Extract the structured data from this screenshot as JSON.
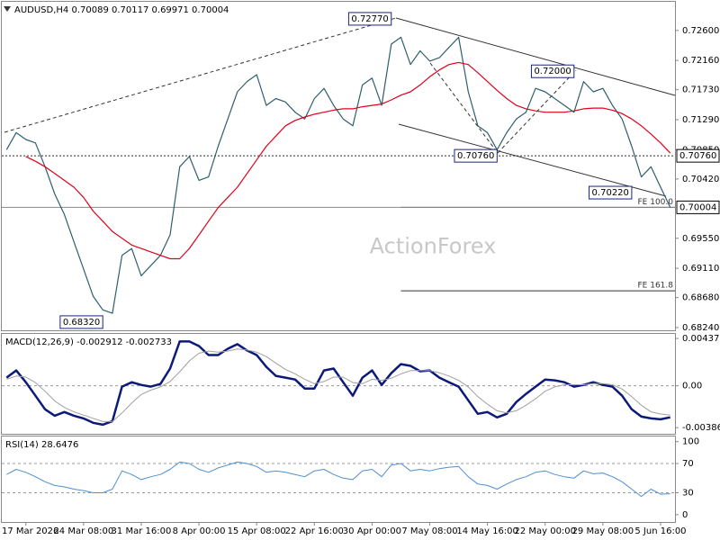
{
  "chart_data": [
    {
      "type": "line",
      "title": "AUDUSD,H4  0.70089 0.70117 0.69971 0.70004",
      "watermark": "ActionForex",
      "ylim": [
        0.682,
        0.7302
      ],
      "yticks": [
        {
          "value": 0.726,
          "label": "0.72600"
        },
        {
          "value": 0.7216,
          "label": "0.72160"
        },
        {
          "value": 0.7173,
          "label": "0.71730"
        },
        {
          "value": 0.7129,
          "label": "0.71290"
        },
        {
          "value": 0.7085,
          "label": "0.70850"
        },
        {
          "value": 0.7042,
          "label": "0.70420"
        },
        {
          "value": 0.6955,
          "label": "0.69550"
        },
        {
          "value": 0.6911,
          "label": "0.69110"
        },
        {
          "value": 0.6868,
          "label": "0.68680"
        },
        {
          "value": 0.6824,
          "label": "0.68240"
        }
      ],
      "series": [
        {
          "color": "#2f5f6e",
          "values": [
            0.7085,
            0.711,
            0.71,
            0.7095,
            0.706,
            0.702,
            0.699,
            0.695,
            0.691,
            0.687,
            0.685,
            0.6845,
            0.693,
            0.694,
            0.69,
            0.6915,
            0.693,
            0.696,
            0.706,
            0.7075,
            0.704,
            0.7045,
            0.709,
            0.713,
            0.717,
            0.7185,
            0.7195,
            0.715,
            0.716,
            0.7155,
            0.714,
            0.713,
            0.716,
            0.7175,
            0.715,
            0.713,
            0.712,
            0.718,
            0.719,
            0.715,
            0.724,
            0.725,
            0.721,
            0.723,
            0.7215,
            0.722,
            0.7235,
            0.725,
            0.717,
            0.712,
            0.711,
            0.7085,
            0.711,
            0.713,
            0.714,
            0.7175,
            0.717,
            0.716,
            0.715,
            0.714,
            0.7185,
            0.717,
            0.7175,
            0.715,
            0.713,
            0.709,
            0.7045,
            0.706,
            0.703,
            0.70004
          ]
        },
        {
          "color": "#e0001b",
          "values": [
            null,
            null,
            0.7075,
            0.7068,
            0.706,
            0.705,
            0.704,
            0.703,
            0.7015,
            0.6995,
            0.698,
            0.6965,
            0.6955,
            0.6945,
            0.694,
            0.6935,
            0.693,
            0.6925,
            0.6925,
            0.694,
            0.696,
            0.698,
            0.7,
            0.7015,
            0.703,
            0.705,
            0.707,
            0.709,
            0.7105,
            0.712,
            0.7128,
            0.7133,
            0.7137,
            0.714,
            0.7143,
            0.7145,
            0.7145,
            0.7148,
            0.715,
            0.7152,
            0.7158,
            0.7165,
            0.717,
            0.718,
            0.7192,
            0.7202,
            0.721,
            0.7213,
            0.721,
            0.7198,
            0.7185,
            0.7172,
            0.716,
            0.715,
            0.7145,
            0.7142,
            0.714,
            0.714,
            0.714,
            0.7142,
            0.7145,
            0.7146,
            0.7146,
            0.7143,
            0.7138,
            0.713,
            0.712,
            0.7108,
            0.7095,
            0.708
          ]
        }
      ],
      "hlines": [
        {
          "value": 0.7076,
          "label": "0.70760",
          "style": "dotted"
        },
        {
          "value": 0.70004,
          "label": "0.70004",
          "style": "solid"
        }
      ],
      "levels": [
        {
          "value": 0.70004,
          "label": "FE 100.0",
          "from": 41
        },
        {
          "value": 0.6878,
          "label": "FE 161.8",
          "from": 41
        }
      ],
      "annotations": [
        {
          "label": "0.72770",
          "value": 0.7277,
          "x": 40
        },
        {
          "label": "0.70760",
          "value": 0.7076,
          "x": 51
        },
        {
          "label": "0.72000",
          "value": 0.72,
          "x": 59
        },
        {
          "label": "0.70220",
          "value": 0.7022,
          "x": 65
        },
        {
          "label": "0.68320",
          "value": 0.6832,
          "x": 10
        }
      ]
    },
    {
      "type": "line",
      "title": "MACD(12,26,9) -0.002912 -0.002733",
      "ylim": [
        -0.00443,
        0.00479
      ],
      "yticks": [
        0.00437,
        {
          "value": 0,
          "label": "0.00"
        },
        -0.003861
      ],
      "levels": [
        0
      ],
      "series": [
        {
          "color": "#0b1a7a",
          "values": [
            0.00075,
            0.00142,
            0.00033,
            -0.00092,
            -0.00217,
            -0.00276,
            -0.00242,
            -0.00276,
            -0.00301,
            -0.00342,
            -0.00359,
            -0.00326,
            -8e-05,
            0.00033,
            8e-05,
            -8e-05,
            0.00017,
            0.00159,
            0.00409,
            0.00409,
            0.00367,
            0.00284,
            0.00284,
            0.00342,
            0.00384,
            0.00326,
            0.00284,
            0.00175,
            0.00092,
            0.00075,
            0.00058,
            -0.00025,
            -0.00025,
            0.00142,
            0.00159,
            0.00033,
            -0.00092,
            0.00075,
            0.00142,
            8e-05,
            0.00117,
            0.002,
            0.00184,
            0.00134,
            0.00142,
            0.00075,
            0.00033,
            -8e-05,
            -0.00134,
            -0.00259,
            -0.00242,
            -0.00292,
            -0.00259,
            -0.0015,
            -0.00075,
            -8e-05,
            0.00058,
            0.0005,
            0.00033,
            -8e-05,
            8e-05,
            0.00033,
            8e-05,
            -8e-05,
            -0.00092,
            -0.00217,
            -0.00284,
            -0.00301,
            -0.00309,
            -0.00291
          ]
        },
        {
          "color": "#a0a0a0",
          "values": [
            0.0006,
            0.0009,
            0.0008,
            0.0003,
            -0.0005,
            -0.0014,
            -0.002,
            -0.0024,
            -0.0027,
            -0.003,
            -0.0033,
            -0.0033,
            -0.0025,
            -0.0016,
            -0.0008,
            -0.0004,
            -0.0001,
            0.0004,
            0.0013,
            0.0023,
            0.003,
            0.0032,
            0.0031,
            0.0032,
            0.0034,
            0.0033,
            0.0031,
            0.0027,
            0.0021,
            0.0015,
            0.0011,
            0.0006,
            0.0002,
            0.0004,
            0.0008,
            0.0008,
            0.0003,
            0.0002,
            0.0006,
            0.0005,
            0.0007,
            0.0011,
            0.0014,
            0.0014,
            0.0014,
            0.0012,
            0.0009,
            0.0005,
            -0.0001,
            -0.001,
            -0.0017,
            -0.0023,
            -0.0025,
            -0.0023,
            -0.0018,
            -0.0012,
            -0.0005,
            -0.0001,
            0.0001,
            0.0001,
            0.0001,
            0.0002,
            0.0002,
            0.0001,
            -0.0003,
            -0.001,
            -0.0018,
            -0.0024,
            -0.0026,
            -0.0027
          ]
        }
      ]
    },
    {
      "type": "line",
      "title": "RSI(14) 28.6476",
      "ylim": [
        -10,
        107
      ],
      "yticks": [
        100,
        70,
        30,
        0
      ],
      "levels": [
        70,
        30
      ],
      "categories": [
        null,
        null,
        "17 Mar 2026",
        null,
        null,
        null,
        null,
        null,
        "24 Mar 08:00",
        null,
        null,
        null,
        null,
        null,
        "31 Mar 16:00",
        null,
        null,
        null,
        null,
        null,
        "8 Apr 00:00",
        null,
        null,
        null,
        null,
        null,
        "15 Apr 08:00",
        null,
        null,
        null,
        null,
        null,
        "22 Apr 16:00",
        null,
        null,
        null,
        null,
        null,
        "30 Apr 00:00",
        null,
        null,
        null,
        null,
        null,
        "7 May 08:00",
        null,
        null,
        null,
        null,
        null,
        "14 May 16:00",
        null,
        null,
        null,
        null,
        null,
        "22 May 00:00",
        null,
        null,
        null,
        null,
        null,
        "29 May 08:00",
        null,
        null,
        null,
        null,
        null,
        "5 Jun 16:00",
        null
      ],
      "series": [
        {
          "color": "#4f8fcf",
          "values": [
            55,
            62,
            58,
            52,
            45,
            40,
            38,
            35,
            33,
            30,
            30,
            35,
            60,
            55,
            48,
            52,
            55,
            62,
            72,
            70,
            62,
            58,
            64,
            68,
            72,
            70,
            66,
            58,
            60,
            58,
            55,
            52,
            60,
            62,
            55,
            50,
            48,
            60,
            62,
            52,
            68,
            70,
            60,
            62,
            60,
            63,
            65,
            66,
            52,
            42,
            40,
            35,
            42,
            48,
            52,
            58,
            60,
            55,
            52,
            50,
            60,
            56,
            57,
            52,
            45,
            35,
            25,
            35,
            28,
            28.6476
          ]
        }
      ]
    }
  ]
}
